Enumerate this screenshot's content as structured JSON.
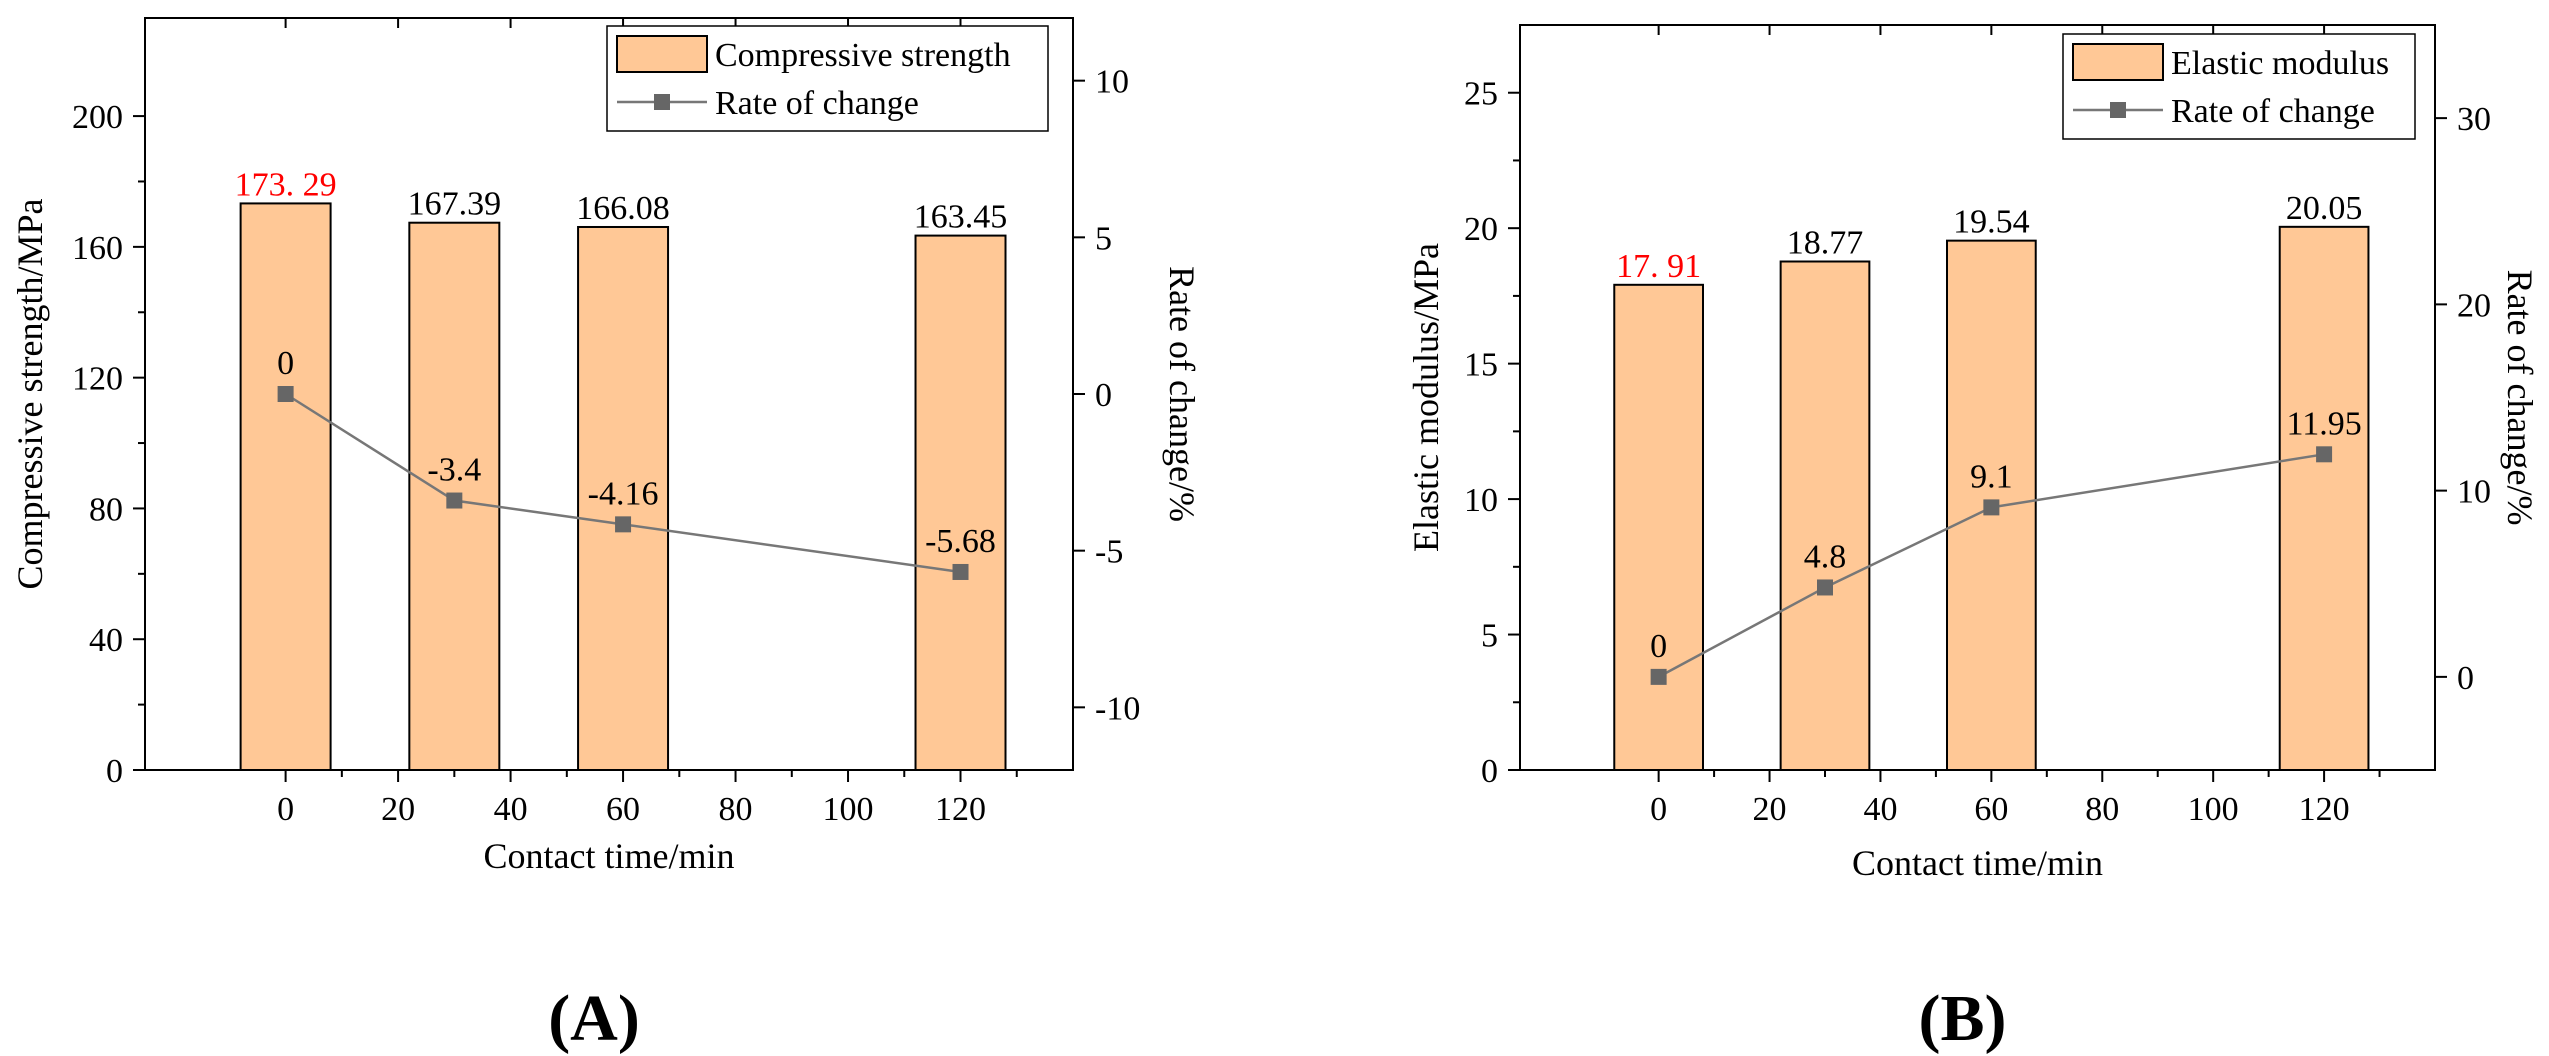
{
  "colors": {
    "bar_fill": "#FFC896",
    "bar_stroke": "#000000",
    "line": "#777777",
    "marker": "#666666",
    "highlight_label": "#FF0000"
  },
  "chart_data": [
    {
      "panel_label": "(A)",
      "type": "bar+line",
      "xlabel": "Contact time/min",
      "ylabel_left": "Compressive strength/MPa",
      "ylabel_right": "Rate of change/%",
      "xlim": [
        -25,
        140
      ],
      "x_ticks": [
        0,
        20,
        40,
        60,
        80,
        100,
        120
      ],
      "x_tick_labels": [
        "0",
        "20",
        "40",
        "60",
        "80",
        "100",
        "120"
      ],
      "ylim_left": [
        0,
        230
      ],
      "y_ticks_left": [
        0,
        40,
        80,
        120,
        160,
        200
      ],
      "y_tick_labels_left": [
        "0",
        "40",
        "80",
        "120",
        "160",
        "200"
      ],
      "ylim_right": [
        -12,
        12
      ],
      "y_ticks_right": [
        -10,
        -5,
        0,
        5,
        10
      ],
      "y_tick_labels_right": [
        "-10",
        "-5",
        "0",
        "5",
        "10"
      ],
      "bar_width": 16,
      "x": [
        0,
        30,
        60,
        120
      ],
      "bars": {
        "name": "Compressive strength",
        "values": [
          173.29,
          167.39,
          166.08,
          163.45
        ],
        "labels": [
          "173. 29",
          "167.39",
          "166.08",
          "163.45"
        ],
        "label_colors": [
          "#FF0000",
          "#000000",
          "#000000",
          "#000000"
        ]
      },
      "line": {
        "name": "Rate of change",
        "values": [
          0,
          -3.4,
          -4.16,
          -5.68
        ],
        "labels": [
          "0",
          "-3.4",
          "-4.16",
          "-5.68"
        ]
      },
      "legend": [
        "Compressive strength",
        "Rate of change"
      ],
      "legend_position": "top-right"
    },
    {
      "panel_label": "(B)",
      "type": "bar+line",
      "xlabel": "Contact time/min",
      "ylabel_left": "Elastic modulus/MPa",
      "ylabel_right": "Rate of change/%",
      "xlim": [
        -25,
        140
      ],
      "x_ticks": [
        0,
        20,
        40,
        60,
        80,
        100,
        120
      ],
      "x_tick_labels": [
        "0",
        "20",
        "40",
        "60",
        "80",
        "100",
        "120"
      ],
      "ylim_left": [
        0,
        27.5
      ],
      "y_ticks_left": [
        0,
        5,
        10,
        15,
        20,
        25
      ],
      "y_tick_labels_left": [
        "0",
        "5",
        "10",
        "15",
        "20",
        "25"
      ],
      "ylim_right": [
        -5,
        35
      ],
      "y_ticks_right": [
        0,
        10,
        20,
        30
      ],
      "y_tick_labels_right": [
        "0",
        "10",
        "20",
        "30"
      ],
      "bar_width": 16,
      "x": [
        0,
        30,
        60,
        120
      ],
      "bars": {
        "name": "Elastic modulus",
        "values": [
          17.91,
          18.77,
          19.54,
          20.05
        ],
        "labels": [
          "17. 91",
          "18.77",
          "19.54",
          "20.05"
        ],
        "label_colors": [
          "#FF0000",
          "#000000",
          "#000000",
          "#000000"
        ]
      },
      "line": {
        "name": "Rate of change",
        "values": [
          0,
          4.8,
          9.1,
          11.95
        ],
        "labels": [
          "0",
          "4.8",
          "9.1",
          "11.95"
        ]
      },
      "legend": [
        "Elastic modulus",
        "Rate of change"
      ],
      "legend_position": "top-right"
    }
  ]
}
